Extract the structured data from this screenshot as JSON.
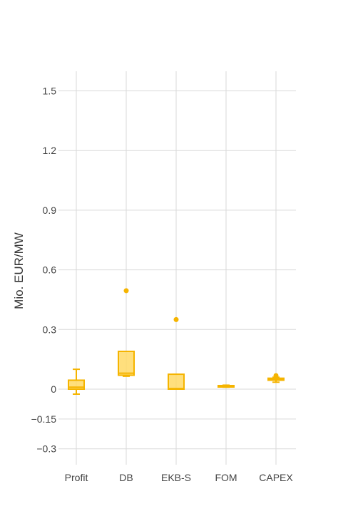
{
  "chart_data": {
    "type": "box",
    "ylabel": "Mio. EUR/MW",
    "categories": [
      "Profit",
      "DB",
      "EKB-S",
      "FOM",
      "CAPEX"
    ],
    "yticks": [
      1.5,
      1.2,
      0.9,
      0.6,
      0.3,
      0,
      -0.15,
      -0.3
    ],
    "ytick_labels": [
      "1.5",
      "1.2",
      "0.9",
      "0.6",
      "0.3",
      "0",
      "−0.15",
      "−0.3"
    ],
    "ylim": [
      -0.4,
      1.6
    ],
    "grid": true,
    "color": "#F5B400",
    "fill_color": "#FFD966",
    "boxes": [
      {
        "category": "Profit",
        "min": -0.025,
        "q1": 0.0,
        "median": 0.01,
        "q3": 0.045,
        "max": 0.1,
        "outliers": []
      },
      {
        "category": "DB",
        "min": 0.065,
        "q1": 0.07,
        "median": 0.08,
        "q3": 0.19,
        "max": 0.19,
        "outliers": [
          0.495
        ]
      },
      {
        "category": "EKB-S",
        "min": 0.0,
        "q1": 0.0,
        "median": 0.003,
        "q3": 0.075,
        "max": 0.075,
        "outliers": [
          0.35
        ]
      },
      {
        "category": "FOM",
        "min": 0.01,
        "q1": 0.012,
        "median": 0.015,
        "q3": 0.018,
        "max": 0.02,
        "outliers": []
      },
      {
        "category": "CAPEX",
        "min": 0.035,
        "q1": 0.045,
        "median": 0.05,
        "q3": 0.055,
        "max": 0.06,
        "outliers": [
          0.068
        ]
      }
    ]
  }
}
